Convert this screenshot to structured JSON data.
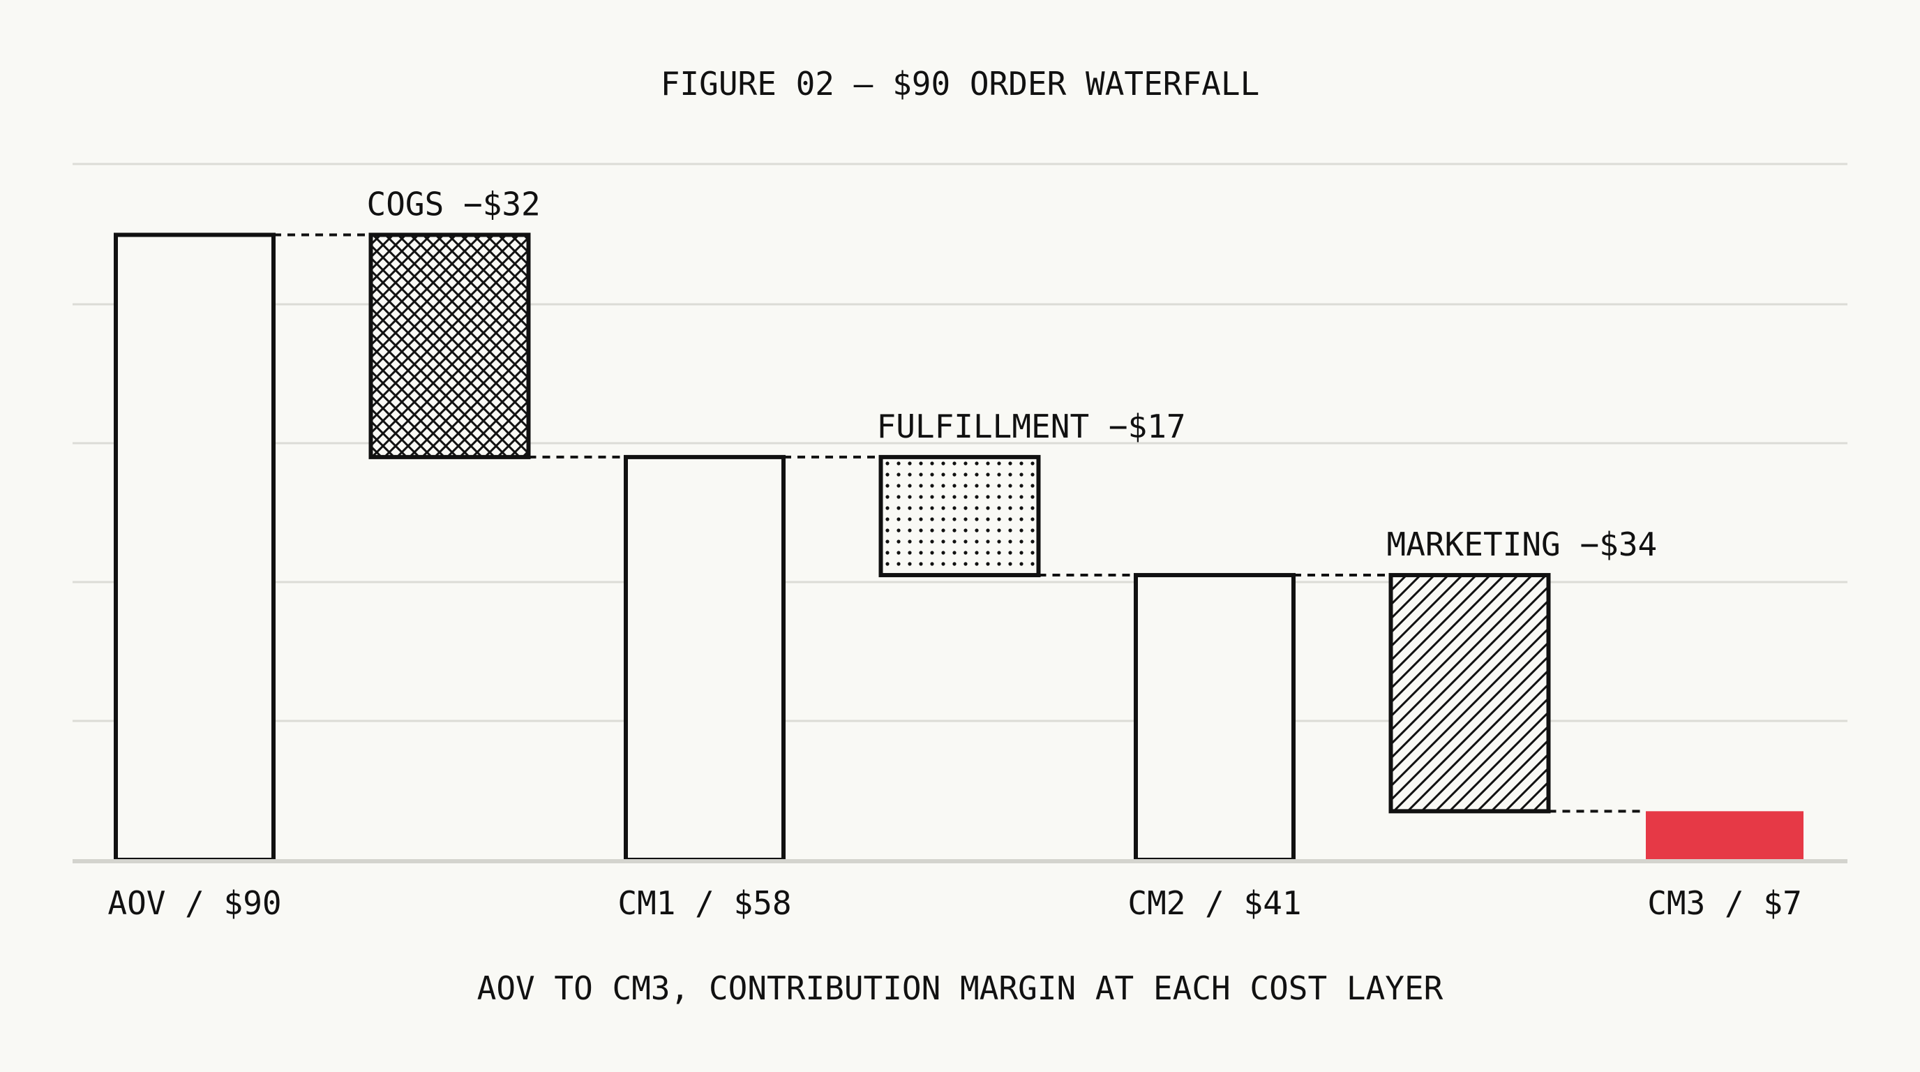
{
  "chart_data": {
    "type": "waterfall",
    "title": "FIGURE 02 — $90 ORDER WATERFALL",
    "subtitle": "AOV TO CM3, CONTRIBUTION MARGIN AT EACH COST LAYER",
    "ylim": [
      0,
      100
    ],
    "grid": true,
    "steps": [
      {
        "kind": "total",
        "value": 90,
        "label": "AOV / $90",
        "pattern": "none",
        "color": "#f9f9f5"
      },
      {
        "kind": "delta",
        "value": -32,
        "label": "COGS −$32",
        "pattern": "crosshatch"
      },
      {
        "kind": "total",
        "value": 58,
        "label": "CM1 / $58",
        "pattern": "none",
        "color": "#f9f9f5"
      },
      {
        "kind": "delta",
        "value": -17,
        "label": "FULFILLMENT −$17",
        "pattern": "dots"
      },
      {
        "kind": "total",
        "value": 41,
        "label": "CM2 / $41",
        "pattern": "none",
        "color": "#f9f9f5"
      },
      {
        "kind": "delta",
        "value": -34,
        "label": "MARKETING −$34",
        "pattern": "diagonal"
      },
      {
        "kind": "total",
        "value": 7,
        "label": "CM3 / $7",
        "pattern": "solid",
        "color": "#e63946"
      }
    ]
  }
}
